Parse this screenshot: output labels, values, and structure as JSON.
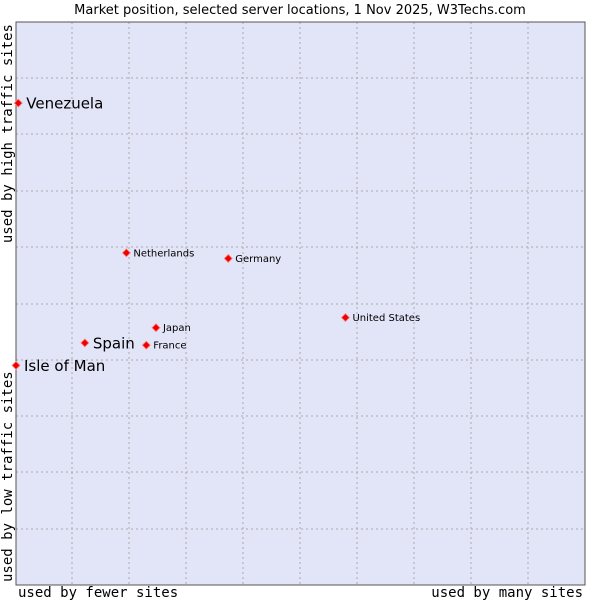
{
  "chart_data": {
    "type": "scatter",
    "title": "Market position, selected server locations, 1 Nov 2025, W3Techs.com",
    "xlabel_left": "used by fewer sites",
    "xlabel_right": "used by many sites",
    "ylabel_bottom": "used by low traffic sites",
    "ylabel_top": "used by high traffic sites",
    "xlim": [
      0,
      100
    ],
    "ylim": [
      0,
      100
    ],
    "grid": true,
    "points": [
      {
        "label": "Venezuela",
        "x": 0.4,
        "y": 85.6,
        "size": "large"
      },
      {
        "label": "Netherlands",
        "x": 19.4,
        "y": 59.0,
        "size": "small"
      },
      {
        "label": "Germany",
        "x": 37.3,
        "y": 58.0,
        "size": "small"
      },
      {
        "label": "United States",
        "x": 57.9,
        "y": 47.5,
        "size": "small"
      },
      {
        "label": "Japan",
        "x": 24.6,
        "y": 45.7,
        "size": "small"
      },
      {
        "label": "Spain",
        "x": 12.1,
        "y": 43.0,
        "size": "large"
      },
      {
        "label": "France",
        "x": 22.9,
        "y": 42.6,
        "size": "small"
      },
      {
        "label": "Isle of Man",
        "x": 0.0,
        "y": 39.0,
        "size": "large"
      }
    ]
  },
  "colors": {
    "plot_background": "#e2e4f7",
    "plot_border": "#555555",
    "grid": "#aaaaaa",
    "point_fill": "#ee0000",
    "point_stroke": "#ff8888"
  }
}
